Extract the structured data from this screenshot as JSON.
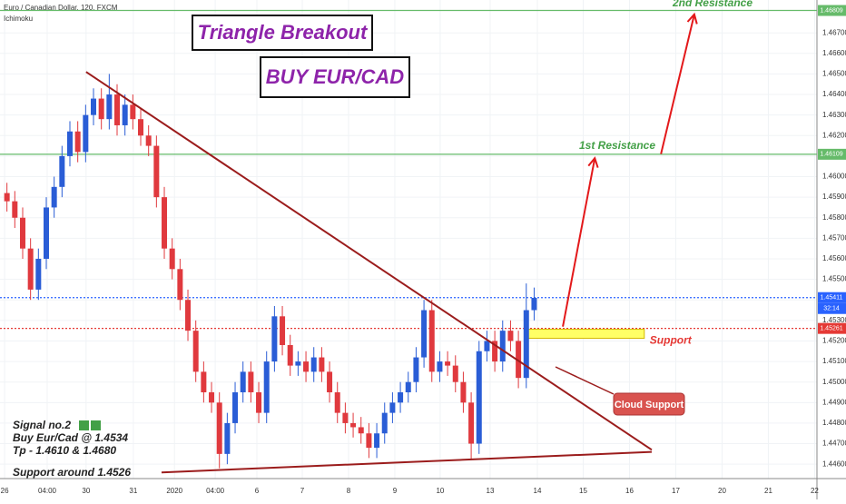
{
  "chart_data": {
    "type": "candlestick",
    "header": "Euro / Canadian Dollar, 120, FXCM",
    "indicator": "Ichimoku",
    "up_color": "#2a5dd6",
    "down_color": "#e0393e",
    "xlim": [
      -0.1,
      17.55
    ],
    "ylim": [
      1.4453,
      1.4686
    ],
    "xticks": [
      {
        "value": 0,
        "label": "26"
      },
      {
        "value": 0.92,
        "label": "04:00"
      },
      {
        "value": 1.76,
        "label": "30"
      },
      {
        "value": 2.78,
        "label": "31"
      },
      {
        "value": 3.67,
        "label": "2020"
      },
      {
        "value": 4.55,
        "label": "04:00"
      },
      {
        "value": 5.45,
        "label": "6"
      },
      {
        "value": 6.43,
        "label": "7"
      },
      {
        "value": 7.43,
        "label": "8"
      },
      {
        "value": 8.43,
        "label": "9"
      },
      {
        "value": 9.41,
        "label": "10"
      },
      {
        "value": 10.49,
        "label": "13"
      },
      {
        "value": 11.51,
        "label": "14"
      },
      {
        "value": 12.5,
        "label": "15"
      },
      {
        "value": 13.5,
        "label": "16"
      },
      {
        "value": 14.5,
        "label": "17"
      },
      {
        "value": 15.5,
        "label": "20"
      },
      {
        "value": 16.5,
        "label": "21"
      },
      {
        "value": 17.5,
        "label": "22"
      }
    ],
    "yticks": [
      {
        "value": 1.446,
        "label": "1.44600"
      },
      {
        "value": 1.447,
        "label": "1.44700"
      },
      {
        "value": 1.448,
        "label": "1.44800"
      },
      {
        "value": 1.449,
        "label": "1.44900"
      },
      {
        "value": 1.45,
        "label": "1.45000"
      },
      {
        "value": 1.451,
        "label": "1.45100"
      },
      {
        "value": 1.452,
        "label": "1.45200"
      },
      {
        "value": 1.453,
        "label": "1.45300"
      },
      {
        "value": 1.454,
        "label": "1.45400"
      },
      {
        "value": 1.455,
        "label": "1.45500"
      },
      {
        "value": 1.456,
        "label": "1.45600"
      },
      {
        "value": 1.457,
        "label": "1.45700"
      },
      {
        "value": 1.458,
        "label": "1.45800"
      },
      {
        "value": 1.459,
        "label": "1.45900"
      },
      {
        "value": 1.46,
        "label": "1.46000"
      },
      {
        "value": 1.461,
        "label": "1.46100"
      },
      {
        "value": 1.462,
        "label": "1.46200"
      },
      {
        "value": 1.463,
        "label": "1.46300"
      },
      {
        "value": 1.464,
        "label": "1.46400"
      },
      {
        "value": 1.465,
        "label": "1.46500"
      },
      {
        "value": 1.466,
        "label": "1.46600"
      },
      {
        "value": 1.467,
        "label": "1.46700"
      }
    ],
    "x": [
      0.05,
      0.22,
      0.39,
      0.56,
      0.73,
      0.9,
      1.07,
      1.24,
      1.41,
      1.58,
      1.75,
      1.92,
      2.09,
      2.26,
      2.43,
      2.6,
      2.77,
      2.94,
      3.11,
      3.28,
      3.45,
      3.62,
      3.79,
      3.96,
      4.13,
      4.3,
      4.47,
      4.64,
      4.81,
      4.98,
      5.15,
      5.32,
      5.49,
      5.66,
      5.83,
      6,
      6.17,
      6.34,
      6.51,
      6.68,
      6.85,
      7.02,
      7.19,
      7.36,
      7.53,
      7.7,
      7.87,
      8.04,
      8.21,
      8.38,
      8.55,
      8.72,
      8.89,
      9.06,
      9.23,
      9.4,
      9.57,
      9.74,
      9.91,
      10.08,
      10.25,
      10.42,
      10.59,
      10.76,
      10.93,
      11.1,
      11.27,
      11.44
    ],
    "open": [
      1.4592,
      1.4588,
      1.458,
      1.4565,
      1.4545,
      1.456,
      1.4585,
      1.4595,
      1.461,
      1.4622,
      1.4612,
      1.463,
      1.4638,
      1.4628,
      1.464,
      1.4625,
      1.4635,
      1.4628,
      1.462,
      1.4615,
      1.459,
      1.4565,
      1.4555,
      1.454,
      1.4525,
      1.4505,
      1.4495,
      1.449,
      1.4465,
      1.448,
      1.4495,
      1.4505,
      1.4495,
      1.4485,
      1.451,
      1.4532,
      1.4518,
      1.4508,
      1.451,
      1.4505,
      1.4512,
      1.4505,
      1.4495,
      1.4485,
      1.448,
      1.4478,
      1.4475,
      1.4468,
      1.4475,
      1.4485,
      1.449,
      1.4495,
      1.45,
      1.4512,
      1.4535,
      1.4505,
      1.451,
      1.4508,
      1.45,
      1.449,
      1.447,
      1.4515,
      1.452,
      1.451,
      1.4525,
      1.452,
      1.4502,
      1.4535
    ],
    "high": [
      1.4597,
      1.4593,
      1.4585,
      1.457,
      1.4565,
      1.459,
      1.46,
      1.4615,
      1.4627,
      1.4627,
      1.4635,
      1.4643,
      1.4643,
      1.465,
      1.4645,
      1.464,
      1.464,
      1.4633,
      1.4625,
      1.462,
      1.4595,
      1.457,
      1.456,
      1.4545,
      1.453,
      1.451,
      1.45,
      1.4495,
      1.4485,
      1.45,
      1.451,
      1.451,
      1.45,
      1.4515,
      1.4537,
      1.4537,
      1.4523,
      1.4515,
      1.4515,
      1.4517,
      1.4517,
      1.451,
      1.45,
      1.449,
      1.4485,
      1.4483,
      1.448,
      1.448,
      1.449,
      1.4495,
      1.45,
      1.4505,
      1.4517,
      1.454,
      1.454,
      1.4515,
      1.4515,
      1.4513,
      1.4505,
      1.4495,
      1.452,
      1.4525,
      1.4525,
      1.453,
      1.453,
      1.4525,
      1.4548,
      1.4546
    ],
    "low": [
      1.4583,
      1.4575,
      1.456,
      1.454,
      1.454,
      1.4555,
      1.458,
      1.459,
      1.4605,
      1.4607,
      1.4607,
      1.4625,
      1.4623,
      1.4623,
      1.462,
      1.462,
      1.4623,
      1.4615,
      1.461,
      1.4585,
      1.456,
      1.455,
      1.4535,
      1.452,
      1.45,
      1.449,
      1.4485,
      1.4458,
      1.446,
      1.4475,
      1.449,
      1.449,
      1.448,
      1.448,
      1.4505,
      1.4513,
      1.4503,
      1.4503,
      1.45,
      1.45,
      1.45,
      1.449,
      1.448,
      1.4475,
      1.4473,
      1.447,
      1.4463,
      1.4463,
      1.447,
      1.448,
      1.4485,
      1.449,
      1.4495,
      1.4507,
      1.45,
      1.45,
      1.4503,
      1.4495,
      1.4485,
      1.4462,
      1.4465,
      1.451,
      1.4505,
      1.4505,
      1.4515,
      1.4497,
      1.4497,
      1.453
    ],
    "close": [
      1.4588,
      1.458,
      1.4565,
      1.4545,
      1.456,
      1.4585,
      1.4595,
      1.461,
      1.4622,
      1.4612,
      1.463,
      1.4638,
      1.4628,
      1.464,
      1.4625,
      1.4635,
      1.4628,
      1.462,
      1.4615,
      1.459,
      1.4565,
      1.4555,
      1.454,
      1.4525,
      1.4505,
      1.4495,
      1.449,
      1.4465,
      1.448,
      1.4495,
      1.4505,
      1.4495,
      1.4485,
      1.451,
      1.4532,
      1.4518,
      1.4508,
      1.451,
      1.4505,
      1.4512,
      1.4505,
      1.4495,
      1.4485,
      1.448,
      1.4478,
      1.4475,
      1.4468,
      1.4475,
      1.4485,
      1.449,
      1.4495,
      1.45,
      1.4512,
      1.4535,
      1.4505,
      1.451,
      1.4508,
      1.45,
      1.449,
      1.447,
      1.4515,
      1.452,
      1.451,
      1.4525,
      1.452,
      1.4502,
      1.4535,
      1.4541
    ],
    "levels": [
      {
        "value": 1.46809,
        "label": "1.46809",
        "color": "#66bb6a",
        "name": "2nd Resistance"
      },
      {
        "value": 1.46109,
        "label": "1.46109",
        "color": "#66bb6a",
        "name": "1st Resistance"
      },
      {
        "value": 1.45411,
        "label": "1.45411",
        "color": "#2962ff",
        "countdown": "32:14"
      },
      {
        "value": 1.45261,
        "label": "1.45261",
        "color": "#e53935"
      }
    ],
    "trendlines": [
      {
        "color": "#9b1c1c",
        "x": [
          1.76,
          13.98
        ],
        "y": [
          1.4651,
          1.4467
        ]
      },
      {
        "color": "#9b1c1c",
        "x": [
          3.39,
          13.98
        ],
        "y": [
          1.4456,
          1.4466
        ]
      }
    ],
    "arrows": [
      {
        "color": "#e3191b",
        "x": [
          12.06,
          12.75
        ],
        "y": [
          1.4527,
          1.4609
        ]
      },
      {
        "color": "#e3191b",
        "x": [
          14.18,
          14.9
        ],
        "y": [
          1.4611,
          1.4679
        ]
      }
    ],
    "support_zone": {
      "x": [
        11.27,
        13.82
      ],
      "y": [
        1.45213,
        1.45257
      ],
      "label": "Support"
    },
    "annotations": {
      "title": "Triangle Breakout",
      "subtitle": "BUY EUR/CAD",
      "cloud_support": "Cloud Support",
      "signal": [
        "Signal no.2",
        "Buy Eur/Cad @ 1.4534",
        "Tp - 1.4610 & 1.4680",
        "Support around 1.4526"
      ]
    }
  }
}
